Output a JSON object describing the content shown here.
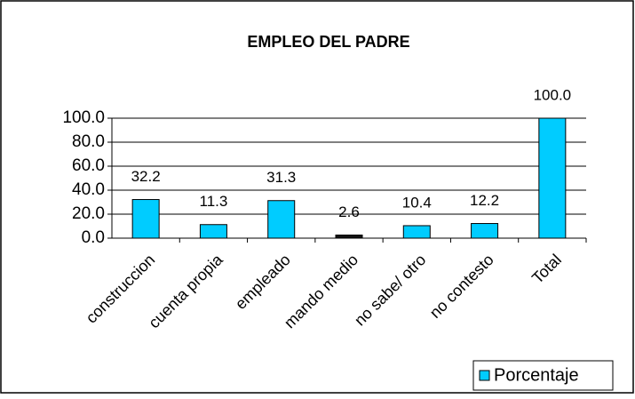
{
  "chart_data": {
    "type": "bar",
    "title": "EMPLEO DEL PADRE",
    "categories": [
      "construccion",
      "cuenta propia",
      "empleado",
      "mando medio",
      "no sabe/ otro",
      "no contesto",
      "Total"
    ],
    "series": [
      {
        "name": "Porcentaje",
        "color": "#00ccff",
        "values": [
          32.2,
          11.3,
          31.3,
          2.6,
          10.4,
          12.2,
          100
        ],
        "value_labels": [
          "32.2",
          "11.3",
          "31.3",
          "2.6",
          "10.4",
          "12.2",
          "100.0"
        ],
        "colors": [
          "#00ccff",
          "#00ccff",
          "#00ccff",
          "#111111",
          "#00ccff",
          "#00ccff",
          "#00ccff"
        ]
      }
    ],
    "ylim": [
      0,
      100
    ],
    "yticks": [
      {
        "value": 0,
        "label": "0.0"
      },
      {
        "value": 20,
        "label": "20.0"
      },
      {
        "value": 40,
        "label": "40.0"
      },
      {
        "value": 60,
        "label": "60.0"
      },
      {
        "value": 80,
        "label": "80.0"
      },
      {
        "value": 100,
        "label": "100.0"
      }
    ],
    "grid": true,
    "legend": "bottom-right"
  }
}
